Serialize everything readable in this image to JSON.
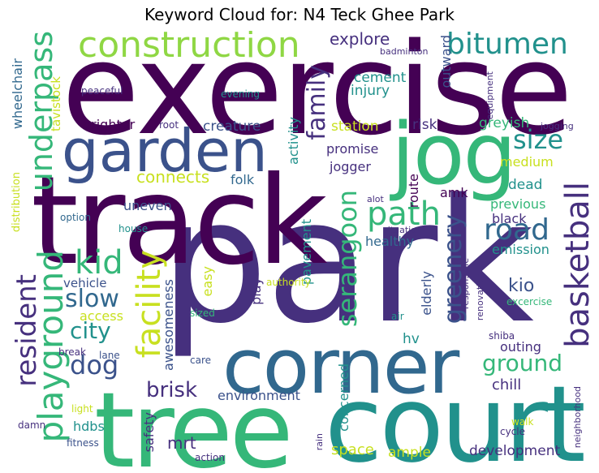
{
  "title": "Keyword Cloud for: N4 Teck Ghee Park",
  "palette": {
    "darkPurple": "#440154",
    "purple": "#46307e",
    "indigo": "#3b528b",
    "blue": "#31688e",
    "teal": "#21918c",
    "green": "#35b779",
    "lime": "#8fd744",
    "yellow": "#c8e020"
  },
  "words": {
    "exercise": "exercise",
    "park": "park",
    "track": "track",
    "tree": "tree",
    "court": "court",
    "corner": "corner",
    "jog": "jog",
    "garden": "garden",
    "construction": "construction",
    "bitumen": "bitumen",
    "underpass": "underpass",
    "playground": "playground",
    "basketball": "basketball",
    "path": "path",
    "road": "road",
    "kid": "kid",
    "family": "family",
    "serangoon": "serangoon",
    "facility": "facility",
    "resident": "resident",
    "slow": "slow",
    "city": "city",
    "dog": "dog",
    "size": "size",
    "greenery": "greenery",
    "ground": "ground",
    "brisk": "brisk",
    "explore": "explore",
    "cement": "cement",
    "injury": "injury",
    "station": "station",
    "greyish": "greyish",
    "creature": "creature",
    "brighter": "brighter",
    "promise": "promise",
    "connects": "connects",
    "folk": "folk",
    "jogger": "jogger",
    "route": "route",
    "risk": "risk",
    "outward": "outward",
    "medium": "medium",
    "dead": "dead",
    "amk": "amk",
    "previous": "previous",
    "black": "black",
    "healthy": "healthy",
    "emission": "emission",
    "kio": "kio",
    "elderly": "elderly",
    "outing": "outing",
    "chill": "chill",
    "hv": "hv",
    "concerned": "concerned",
    "space": "space",
    "ample": "ample",
    "development": "development",
    "environment": "environment",
    "safety": "safety",
    "mrt": "mrt",
    "awesomeness": "awesomeness",
    "uneven": "uneven",
    "pavement": "pavement",
    "play": "play",
    "easy": "easy",
    "vehicle": "vehicle",
    "access": "access",
    "hdbs": "hdbs",
    "wheelchair": "wheelchair",
    "tavistock": "tavistock",
    "distribution": "distribution",
    "peaceful": "peaceful",
    "root": "root",
    "evening": "evening",
    "activity": "activity",
    "equipment": "equipment",
    "jogging": "jogging",
    "badminton": "badminton",
    "alot": "alot",
    "option": "option",
    "house": "house",
    "situation": "situation",
    "authority": "authority",
    "responsible": "responsible",
    "renovation": "renovation",
    "excercise": "excercise",
    "air": "air",
    "sized": "sized",
    "break": "break",
    "lane": "lane",
    "care": "care",
    "shiba": "shiba",
    "light": "light",
    "damn": "damn",
    "fitness": "fitness",
    "rain": "rain",
    "action": "action",
    "walk": "walk",
    "cycle": "cycle",
    "neighborhood": "neighborhood"
  }
}
